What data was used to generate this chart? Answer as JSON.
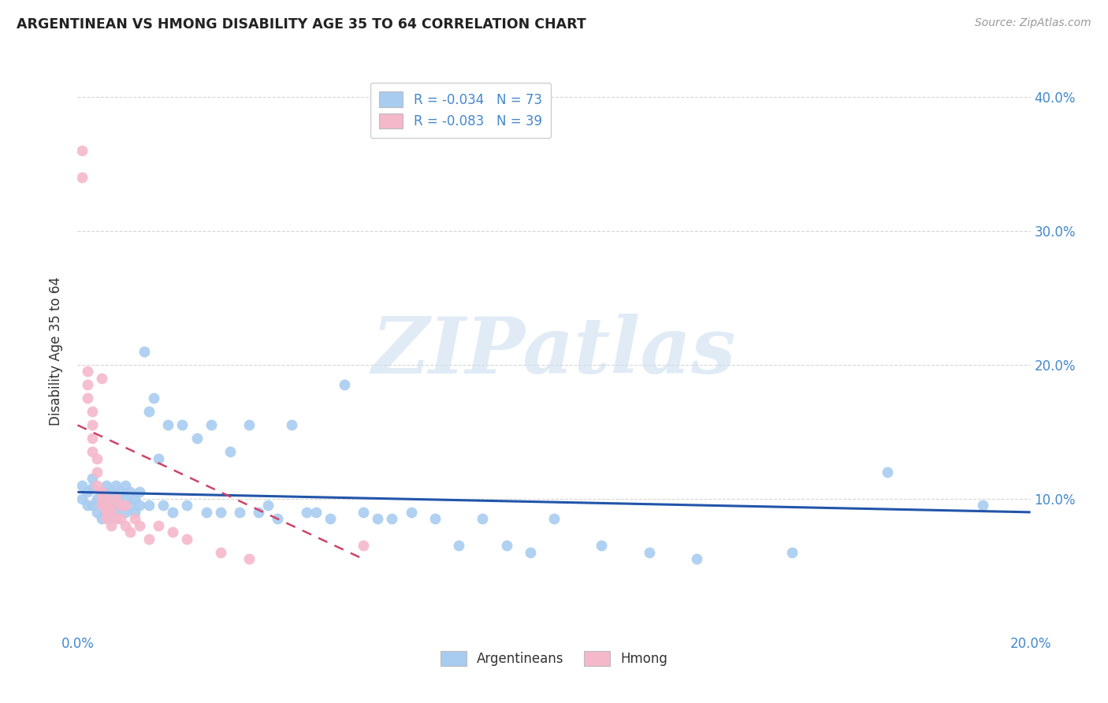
{
  "title": "ARGENTINEAN VS HMONG DISABILITY AGE 35 TO 64 CORRELATION CHART",
  "source": "Source: ZipAtlas.com",
  "ylabel": "Disability Age 35 to 64",
  "xlim": [
    0.0,
    0.2
  ],
  "ylim": [
    0.0,
    0.42
  ],
  "xticks": [
    0.0,
    0.05,
    0.1,
    0.15,
    0.2
  ],
  "xtick_labels": [
    "0.0%",
    "",
    "",
    "",
    "20.0%"
  ],
  "yticks": [
    0.0,
    0.1,
    0.2,
    0.3,
    0.4
  ],
  "ytick_labels_left": [
    "",
    "",
    "",
    "",
    ""
  ],
  "ytick_labels_right": [
    "",
    "10.0%",
    "20.0%",
    "30.0%",
    "40.0%"
  ],
  "blue_color": "#A8CCF0",
  "pink_color": "#F5B8CB",
  "blue_line_color": "#2255AA",
  "pink_line_color": "#CC4466",
  "blue_R": -0.034,
  "blue_N": 73,
  "pink_R": -0.083,
  "pink_N": 39,
  "watermark": "ZIPatlas",
  "legend_labels": [
    "Argentineans",
    "Hmong"
  ],
  "argentinean_x": [
    0.001,
    0.001,
    0.002,
    0.002,
    0.003,
    0.003,
    0.003,
    0.004,
    0.004,
    0.005,
    0.005,
    0.005,
    0.006,
    0.006,
    0.006,
    0.007,
    0.007,
    0.007,
    0.008,
    0.008,
    0.008,
    0.009,
    0.009,
    0.01,
    0.01,
    0.01,
    0.011,
    0.011,
    0.012,
    0.012,
    0.013,
    0.013,
    0.014,
    0.015,
    0.015,
    0.016,
    0.017,
    0.018,
    0.019,
    0.02,
    0.022,
    0.023,
    0.025,
    0.027,
    0.028,
    0.03,
    0.032,
    0.034,
    0.036,
    0.038,
    0.04,
    0.042,
    0.045,
    0.048,
    0.05,
    0.053,
    0.056,
    0.06,
    0.063,
    0.066,
    0.07,
    0.075,
    0.08,
    0.085,
    0.09,
    0.095,
    0.1,
    0.11,
    0.12,
    0.13,
    0.15,
    0.17,
    0.19
  ],
  "argentinean_y": [
    0.11,
    0.1,
    0.105,
    0.095,
    0.108,
    0.095,
    0.115,
    0.09,
    0.1,
    0.095,
    0.085,
    0.105,
    0.1,
    0.09,
    0.11,
    0.095,
    0.085,
    0.105,
    0.1,
    0.09,
    0.11,
    0.095,
    0.105,
    0.09,
    0.1,
    0.11,
    0.095,
    0.105,
    0.09,
    0.1,
    0.095,
    0.105,
    0.21,
    0.165,
    0.095,
    0.175,
    0.13,
    0.095,
    0.155,
    0.09,
    0.155,
    0.095,
    0.145,
    0.09,
    0.155,
    0.09,
    0.135,
    0.09,
    0.155,
    0.09,
    0.095,
    0.085,
    0.155,
    0.09,
    0.09,
    0.085,
    0.185,
    0.09,
    0.085,
    0.085,
    0.09,
    0.085,
    0.065,
    0.085,
    0.065,
    0.06,
    0.085,
    0.065,
    0.06,
    0.055,
    0.06,
    0.12,
    0.095
  ],
  "hmong_x": [
    0.001,
    0.001,
    0.002,
    0.002,
    0.002,
    0.003,
    0.003,
    0.003,
    0.003,
    0.004,
    0.004,
    0.004,
    0.005,
    0.005,
    0.005,
    0.005,
    0.006,
    0.006,
    0.006,
    0.006,
    0.007,
    0.007,
    0.007,
    0.008,
    0.008,
    0.009,
    0.009,
    0.01,
    0.01,
    0.011,
    0.012,
    0.013,
    0.015,
    0.017,
    0.02,
    0.023,
    0.03,
    0.036,
    0.06
  ],
  "hmong_y": [
    0.36,
    0.34,
    0.195,
    0.185,
    0.175,
    0.165,
    0.155,
    0.145,
    0.135,
    0.13,
    0.12,
    0.11,
    0.105,
    0.1,
    0.095,
    0.19,
    0.09,
    0.1,
    0.085,
    0.095,
    0.09,
    0.08,
    0.095,
    0.085,
    0.1,
    0.085,
    0.095,
    0.08,
    0.095,
    0.075,
    0.085,
    0.08,
    0.07,
    0.08,
    0.075,
    0.07,
    0.06,
    0.055,
    0.065
  ],
  "blue_trend_x": [
    0.0,
    0.2
  ],
  "blue_trend_y": [
    0.105,
    0.09
  ],
  "pink_trend_x": [
    0.0,
    0.06
  ],
  "pink_trend_y": [
    0.155,
    0.055
  ]
}
